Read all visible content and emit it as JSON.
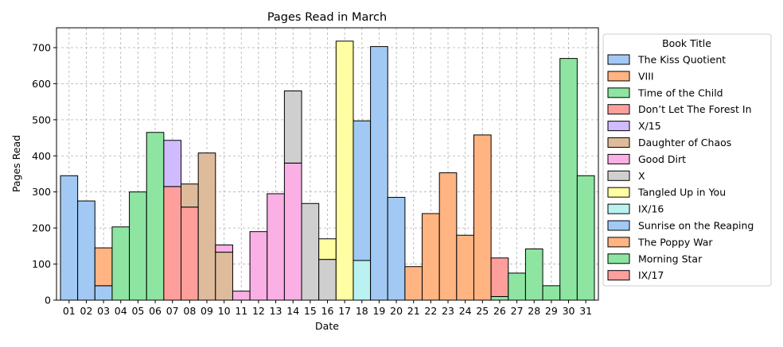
{
  "chart_data": {
    "type": "bar",
    "stacked": true,
    "title": "Pages Read in March",
    "xlabel": "Date",
    "ylabel": "Pages Read",
    "ylim": [
      0,
      755
    ],
    "yticks": [
      0,
      100,
      200,
      300,
      400,
      500,
      600,
      700
    ],
    "grid": true,
    "legend_title": "Book Title",
    "legend_position": "outside-right",
    "categories": [
      "01",
      "02",
      "03",
      "04",
      "05",
      "06",
      "07",
      "08",
      "09",
      "10",
      "11",
      "12",
      "13",
      "14",
      "15",
      "16",
      "17",
      "18",
      "19",
      "20",
      "21",
      "22",
      "23",
      "24",
      "25",
      "26",
      "27",
      "28",
      "29",
      "30",
      "31"
    ],
    "series": [
      {
        "name": "The Kiss Quotient",
        "color": "#a1c9f4",
        "values": [
          345,
          275,
          0,
          0,
          0,
          0,
          0,
          0,
          0,
          0,
          0,
          0,
          0,
          0,
          0,
          0,
          0,
          0,
          0,
          0,
          0,
          0,
          0,
          0,
          0,
          0,
          0,
          0,
          0,
          0,
          0
        ]
      },
      {
        "name": "VIII",
        "color": "#ffb482",
        "values": [
          0,
          0,
          105,
          0,
          0,
          0,
          0,
          0,
          0,
          0,
          0,
          0,
          0,
          0,
          0,
          0,
          0,
          0,
          0,
          0,
          0,
          0,
          0,
          0,
          0,
          0,
          0,
          0,
          0,
          0,
          0
        ]
      },
      {
        "name": "Time of the Child",
        "color": "#8de5a1",
        "values": [
          0,
          0,
          0,
          203,
          300,
          465,
          0,
          0,
          0,
          0,
          0,
          0,
          0,
          0,
          0,
          0,
          0,
          0,
          0,
          0,
          0,
          0,
          0,
          0,
          0,
          0,
          0,
          0,
          0,
          0,
          0
        ]
      },
      {
        "name": "Don’t Let The Forest In",
        "color": "#ff9f9b",
        "values": [
          0,
          0,
          0,
          0,
          0,
          0,
          315,
          258,
          0,
          0,
          0,
          0,
          0,
          0,
          0,
          0,
          0,
          0,
          0,
          0,
          0,
          0,
          0,
          0,
          0,
          0,
          0,
          0,
          0,
          0,
          0
        ]
      },
      {
        "name": "X/15",
        "color": "#d0bbff",
        "values": [
          0,
          0,
          0,
          0,
          0,
          0,
          128,
          0,
          0,
          0,
          0,
          0,
          0,
          0,
          0,
          0,
          0,
          0,
          0,
          0,
          0,
          0,
          0,
          0,
          0,
          0,
          0,
          0,
          0,
          0,
          0
        ]
      },
      {
        "name": "Daughter of Chaos",
        "color": "#debb9b",
        "values": [
          0,
          0,
          0,
          0,
          0,
          0,
          0,
          64,
          408,
          133,
          0,
          0,
          0,
          0,
          0,
          0,
          0,
          0,
          0,
          0,
          0,
          0,
          0,
          0,
          0,
          0,
          0,
          0,
          0,
          0,
          0
        ]
      },
      {
        "name": "Good Dirt",
        "color": "#fab0e4",
        "values": [
          0,
          0,
          0,
          0,
          0,
          0,
          0,
          0,
          0,
          20,
          25,
          190,
          295,
          380,
          0,
          0,
          0,
          0,
          0,
          0,
          0,
          0,
          0,
          0,
          0,
          0,
          0,
          0,
          0,
          0,
          0
        ]
      },
      {
        "name": "X",
        "color": "#cfcfcf",
        "values": [
          0,
          0,
          0,
          0,
          0,
          0,
          0,
          0,
          0,
          0,
          0,
          0,
          0,
          200,
          268,
          113,
          0,
          0,
          0,
          0,
          0,
          0,
          0,
          0,
          0,
          0,
          0,
          0,
          0,
          0,
          0
        ]
      },
      {
        "name": "Tangled Up in You",
        "color": "#fffea3",
        "values": [
          0,
          0,
          0,
          0,
          0,
          0,
          0,
          0,
          0,
          0,
          0,
          0,
          0,
          0,
          0,
          57,
          718,
          0,
          0,
          0,
          0,
          0,
          0,
          0,
          0,
          0,
          0,
          0,
          0,
          0,
          0
        ]
      },
      {
        "name": "IX/16",
        "color": "#b9f2f0",
        "values": [
          0,
          0,
          0,
          0,
          0,
          0,
          0,
          0,
          0,
          0,
          0,
          0,
          0,
          0,
          0,
          0,
          0,
          110,
          0,
          0,
          0,
          0,
          0,
          0,
          0,
          0,
          0,
          0,
          0,
          0,
          0
        ]
      },
      {
        "name": "Sunrise on the Reaping",
        "color": "#a1c9f4",
        "values": [
          0,
          0,
          40,
          0,
          0,
          0,
          0,
          0,
          0,
          0,
          0,
          0,
          0,
          0,
          0,
          0,
          0,
          387,
          703,
          285,
          0,
          0,
          0,
          0,
          0,
          0,
          0,
          0,
          0,
          0,
          0
        ]
      },
      {
        "name": "The Poppy War",
        "color": "#ffb482",
        "values": [
          0,
          0,
          0,
          0,
          0,
          0,
          0,
          0,
          0,
          0,
          0,
          0,
          0,
          0,
          0,
          0,
          0,
          0,
          0,
          0,
          93,
          240,
          353,
          180,
          458,
          0,
          0,
          0,
          0,
          0,
          0
        ]
      },
      {
        "name": "Morning Star",
        "color": "#8de5a1",
        "values": [
          0,
          0,
          0,
          0,
          0,
          0,
          0,
          0,
          0,
          0,
          0,
          0,
          0,
          0,
          0,
          0,
          0,
          0,
          0,
          0,
          0,
          0,
          0,
          0,
          0,
          10,
          75,
          142,
          40,
          670,
          345
        ]
      },
      {
        "name": "IX/17",
        "color": "#ff9f9b",
        "values": [
          0,
          0,
          0,
          0,
          0,
          0,
          0,
          0,
          0,
          0,
          0,
          0,
          0,
          0,
          0,
          0,
          0,
          0,
          0,
          0,
          0,
          0,
          0,
          0,
          0,
          107,
          0,
          0,
          0,
          0,
          0
        ]
      }
    ],
    "stack_order": [
      [
        "The Kiss Quotient"
      ],
      [
        "The Kiss Quotient"
      ],
      [
        "Sunrise on the Reaping",
        "VIII"
      ],
      [
        "Time of the Child"
      ],
      [
        "Time of the Child"
      ],
      [
        "Time of the Child"
      ],
      [
        "Don’t Let The Forest In",
        "X/15"
      ],
      [
        "Don’t Let The Forest In",
        "Daughter of Chaos"
      ],
      [
        "Daughter of Chaos"
      ],
      [
        "Daughter of Chaos",
        "Good Dirt"
      ],
      [
        "Good Dirt"
      ],
      [
        "Good Dirt"
      ],
      [
        "Good Dirt"
      ],
      [
        "Good Dirt",
        "X"
      ],
      [
        "X"
      ],
      [
        "X",
        "Tangled Up in You"
      ],
      [
        "Tangled Up in You"
      ],
      [
        "IX/16",
        "Sunrise on the Reaping"
      ],
      [
        "Sunrise on the Reaping"
      ],
      [
        "Sunrise on the Reaping"
      ],
      [
        "The Poppy War"
      ],
      [
        "The Poppy War"
      ],
      [
        "The Poppy War"
      ],
      [
        "The Poppy War"
      ],
      [
        "The Poppy War"
      ],
      [
        "Morning Star",
        "IX/17"
      ],
      [
        "Morning Star"
      ],
      [
        "Morning Star"
      ],
      [
        "Morning Star"
      ],
      [
        "Morning Star"
      ],
      [
        "Morning Star"
      ]
    ]
  }
}
